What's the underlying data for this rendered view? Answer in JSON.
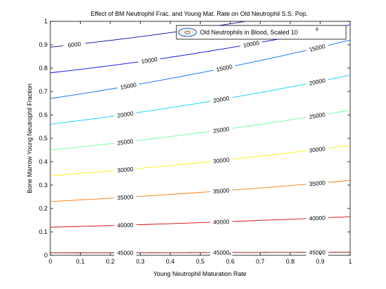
{
  "chart_data": {
    "type": "contour",
    "title": "Effect of BM Neutrophil Frac. and Young Mat. Rate on Old Neutrophil S.S. Pop.",
    "xlabel": "Young Neutrophil Maturation Rate",
    "ylabel": "Bone Marrow Young Neutrophil Fraction",
    "xlim": [
      0,
      1
    ],
    "ylim": [
      0,
      1
    ],
    "xticks": [
      "0",
      "0.1",
      "0.2",
      "0.3",
      "0.4",
      "0.5",
      "0.6",
      "0.7",
      "0.8",
      "0.9",
      "1"
    ],
    "yticks": [
      "0",
      "0.1",
      "0.2",
      "0.3",
      "0.4",
      "0.5",
      "0.6",
      "0.7",
      "0.8",
      "0.9",
      "1"
    ],
    "grid": false,
    "legend": {
      "position": "top-right",
      "label": "Old Neutrophils in Blood, Scaled 10",
      "superscript": "6"
    },
    "contours": [
      {
        "level": 6000,
        "label": "6000",
        "color": "#0000ad",
        "y0": 0.89,
        "y1": 1.08,
        "curve": 0.06,
        "labels": [
          {
            "x": 0.08,
            "text": "6000"
          }
        ]
      },
      {
        "level": 10000,
        "label": "10000",
        "color": "#0000ee",
        "y0": 0.78,
        "y1": 0.985,
        "curve": 0.065,
        "labels": [
          {
            "x": 0.33,
            "text": "10000"
          },
          {
            "x": 0.67,
            "text": "10000"
          }
        ]
      },
      {
        "level": 15000,
        "label": "15000",
        "color": "#0066ff",
        "y0": 0.67,
        "y1": 0.92,
        "curve": 0.06,
        "labels": [
          {
            "x": 0.26,
            "text": "15000"
          },
          {
            "x": 0.58,
            "text": "15000"
          },
          {
            "x": 0.89,
            "text": "15000"
          }
        ]
      },
      {
        "level": 20000,
        "label": "20000",
        "color": "#00ccff",
        "y0": 0.56,
        "y1": 0.77,
        "curve": 0.055,
        "labels": [
          {
            "x": 0.25,
            "text": "20000"
          },
          {
            "x": 0.57,
            "text": "20000"
          },
          {
            "x": 0.89,
            "text": "20000"
          }
        ]
      },
      {
        "level": 25000,
        "label": "25000",
        "color": "#66ff99",
        "y0": 0.45,
        "y1": 0.62,
        "curve": 0.045,
        "labels": [
          {
            "x": 0.25,
            "text": "25000"
          },
          {
            "x": 0.57,
            "text": "25000"
          },
          {
            "x": 0.89,
            "text": "25000"
          }
        ]
      },
      {
        "level": 30000,
        "label": "30000",
        "color": "#ffee00",
        "y0": 0.34,
        "y1": 0.47,
        "curve": 0.035,
        "labels": [
          {
            "x": 0.25,
            "text": "30000"
          },
          {
            "x": 0.57,
            "text": "30000"
          },
          {
            "x": 0.89,
            "text": "30000"
          }
        ]
      },
      {
        "level": 35000,
        "label": "35000",
        "color": "#ff7700",
        "y0": 0.23,
        "y1": 0.32,
        "curve": 0.025,
        "labels": [
          {
            "x": 0.25,
            "text": "35000"
          },
          {
            "x": 0.57,
            "text": "35000"
          },
          {
            "x": 0.89,
            "text": "35000"
          }
        ]
      },
      {
        "level": 40000,
        "label": "40000",
        "color": "#d40000",
        "y0": 0.12,
        "y1": 0.165,
        "curve": 0.012,
        "labels": [
          {
            "x": 0.25,
            "text": "40000"
          },
          {
            "x": 0.57,
            "text": "40000"
          },
          {
            "x": 0.89,
            "text": "40000"
          }
        ]
      },
      {
        "level": 45000,
        "label": "45000",
        "color": "#880000",
        "y0": 0.01,
        "y1": 0.013,
        "curve": 0.0,
        "labels": [
          {
            "x": 0.25,
            "text": "45000"
          },
          {
            "x": 0.57,
            "text": "45000"
          },
          {
            "x": 0.89,
            "text": "45000"
          }
        ]
      }
    ]
  }
}
